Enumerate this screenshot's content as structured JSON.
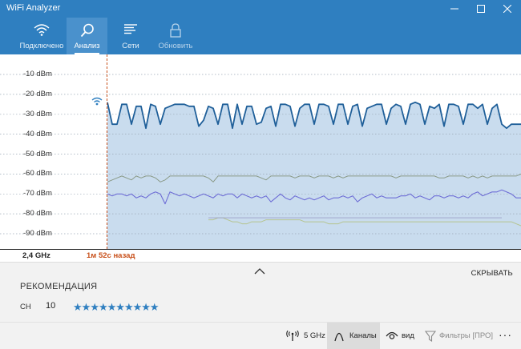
{
  "app": {
    "title": "WiFi Analyzer"
  },
  "nav": {
    "items": [
      {
        "label": "Подключено",
        "icon": "wifi-icon",
        "active": false
      },
      {
        "label": "Анализ",
        "icon": "magnifier-icon",
        "active": true
      },
      {
        "label": "Сети",
        "icon": "list-icon",
        "active": false
      },
      {
        "label": "Обновить",
        "icon": "lock-icon",
        "active": false,
        "disabled": true
      }
    ]
  },
  "chart_data": {
    "type": "line",
    "ylabel": "",
    "xlabel": "",
    "y_tick_labels": [
      "-10 dBm",
      "-20 dBm",
      "-30 dBm",
      "-40 dBm",
      "-50 dBm",
      "-60 dBm",
      "-70 dBm",
      "-80 dBm",
      "-90 dBm"
    ],
    "y_ticks": [
      -10,
      -20,
      -30,
      -40,
      -50,
      -60,
      -70,
      -80,
      -90
    ],
    "ylim": [
      -100,
      -5
    ],
    "grid": true,
    "series": [
      {
        "color": "#1f5f99",
        "width": 1.8,
        "fill": true,
        "start": 0,
        "values": [
          -24,
          -35,
          -35,
          -25,
          -25,
          -35,
          -26,
          -26,
          -37,
          -25,
          -26,
          -35,
          -27,
          -26,
          -25,
          -25,
          -25,
          -26,
          -26,
          -36,
          -33,
          -26,
          -27,
          -35,
          -25,
          -25,
          -37,
          -25,
          -35,
          -26,
          -26,
          -35,
          -34,
          -27,
          -26,
          -36,
          -25,
          -25,
          -26,
          -36,
          -27,
          -25,
          -25,
          -35,
          -25,
          -25,
          -26,
          -35,
          -25,
          -25,
          -35,
          -26,
          -25,
          -36,
          -27,
          -26,
          -25,
          -25,
          -35,
          -27,
          -25,
          -26,
          -35,
          -25,
          -24,
          -25,
          -35,
          -26,
          -27,
          -25,
          -36,
          -25,
          -25,
          -26,
          -35,
          -25,
          -25,
          -27,
          -25,
          -35,
          -27,
          -25,
          -35,
          -37,
          -35,
          -35,
          -35
        ]
      },
      {
        "color": "#8a9a88",
        "width": 1.0,
        "fill": false,
        "start": 0,
        "values": [
          -64,
          -63,
          -62,
          -61,
          -62,
          -63,
          -61,
          -62,
          -61,
          -61,
          -62,
          -64,
          -63,
          -61,
          -61,
          -61,
          -61,
          -61,
          -61,
          -61,
          -61,
          -62,
          -64,
          -61,
          -61,
          -61,
          -61,
          -61,
          -61,
          -61,
          -61,
          -61,
          -62,
          -63,
          -61,
          -61,
          -61,
          -61,
          -61,
          -62,
          -61,
          -61,
          -61,
          -62,
          -61,
          -61,
          -61,
          -62,
          -61,
          -62,
          -61,
          -61,
          -61,
          -61,
          -61,
          -61,
          -61,
          -61,
          -61,
          -61,
          -62,
          -61,
          -61,
          -61,
          -61,
          -61,
          -61,
          -61,
          -61,
          -62,
          -62,
          -61,
          -61,
          -61,
          -61,
          -62,
          -61,
          -62,
          -61,
          -62,
          -61,
          -61,
          -61,
          -61,
          -61,
          -61,
          -60
        ]
      },
      {
        "color": "#6e6ed6",
        "width": 1.1,
        "fill": false,
        "start": 0,
        "values": [
          -70,
          -71,
          -70,
          -70,
          -71,
          -70,
          -72,
          -71,
          -72,
          -70,
          -69,
          -70,
          -75,
          -69,
          -70,
          -71,
          -70,
          -71,
          -72,
          -71,
          -70,
          -71,
          -72,
          -70,
          -71,
          -70,
          -70,
          -72,
          -70,
          -71,
          -72,
          -71,
          -72,
          -71,
          -74,
          -72,
          -70,
          -72,
          -73,
          -71,
          -72,
          -73,
          -72,
          -73,
          -72,
          -71,
          -73,
          -72,
          -72,
          -71,
          -72,
          -71,
          -74,
          -72,
          -71,
          -70,
          -72,
          -71,
          -72,
          -72,
          -72,
          -71,
          -71,
          -70,
          -72,
          -71,
          -72,
          -73,
          -71,
          -71,
          -72,
          -71,
          -71,
          -72,
          -71,
          -72,
          -70,
          -69,
          -71,
          -70,
          -69,
          -69,
          -68,
          -69,
          -70,
          -72,
          -72
        ]
      },
      {
        "color": "#b5c48f",
        "width": 1.0,
        "fill": false,
        "start": 21,
        "values": [
          -83,
          -83,
          -82,
          -82,
          -83,
          -84,
          -84,
          -85,
          -85,
          -84,
          -84,
          -84,
          -83,
          -83,
          -83,
          -83,
          -83,
          -83,
          -83,
          -83,
          -84,
          -84,
          -84,
          -84,
          -84,
          -85,
          -85,
          -85,
          -84,
          -84,
          -84,
          -84,
          -84,
          -84,
          -84,
          -84,
          -84,
          -84,
          -84,
          -84,
          -84,
          -84,
          -84,
          -84,
          -84,
          -84,
          -84,
          -84,
          -84,
          -84,
          -84,
          -84,
          -84,
          -84,
          -84,
          -84,
          -84,
          -84,
          -84,
          -84,
          -84,
          -84,
          -84,
          -84,
          -85,
          -86
        ]
      },
      {
        "color": "#9aa0c8",
        "width": 0.9,
        "fill": false,
        "start": 21,
        "values": [
          -82,
          -82,
          -82,
          -82,
          -82,
          -82,
          -82,
          -82,
          -82,
          -82,
          -82,
          -82,
          -82,
          -82,
          -82,
          -82,
          -82,
          -82,
          -82,
          -82,
          -82,
          -82,
          -82,
          -82,
          -82,
          -82,
          -82,
          -82,
          -82,
          -82,
          -82,
          -82,
          -82,
          -82,
          -82,
          -82,
          -82,
          -82,
          -82,
          -82,
          -82,
          -82,
          -82,
          -82,
          -82,
          -82,
          -82,
          -82,
          -82,
          -82,
          -82,
          -82,
          -82,
          -82,
          -82,
          -82,
          -82,
          -82,
          -82,
          -82,
          -82,
          -82
        ]
      }
    ],
    "band": "2,4 GHz",
    "time_ago": "1м 52с назад"
  },
  "recommendation": {
    "title": "РЕКОМЕНДАЦИЯ",
    "hide_label": "СКРЫВАТЬ",
    "channel_label": "CH",
    "channel_value": "10",
    "rating": 10,
    "star_char": "★"
  },
  "cmdbar": {
    "items": [
      {
        "label": "5 GHz",
        "icon": "antenna-icon"
      },
      {
        "label": "Каналы",
        "icon": "channels-icon",
        "active": true
      },
      {
        "label": "вид",
        "icon": "eye-icon"
      },
      {
        "label": "Фильтры [ПРО]",
        "icon": "filter-icon",
        "disabled": true
      }
    ],
    "more_label": "···"
  },
  "colors": {
    "accent": "#2f7fc0",
    "marker": "#c8501a"
  }
}
